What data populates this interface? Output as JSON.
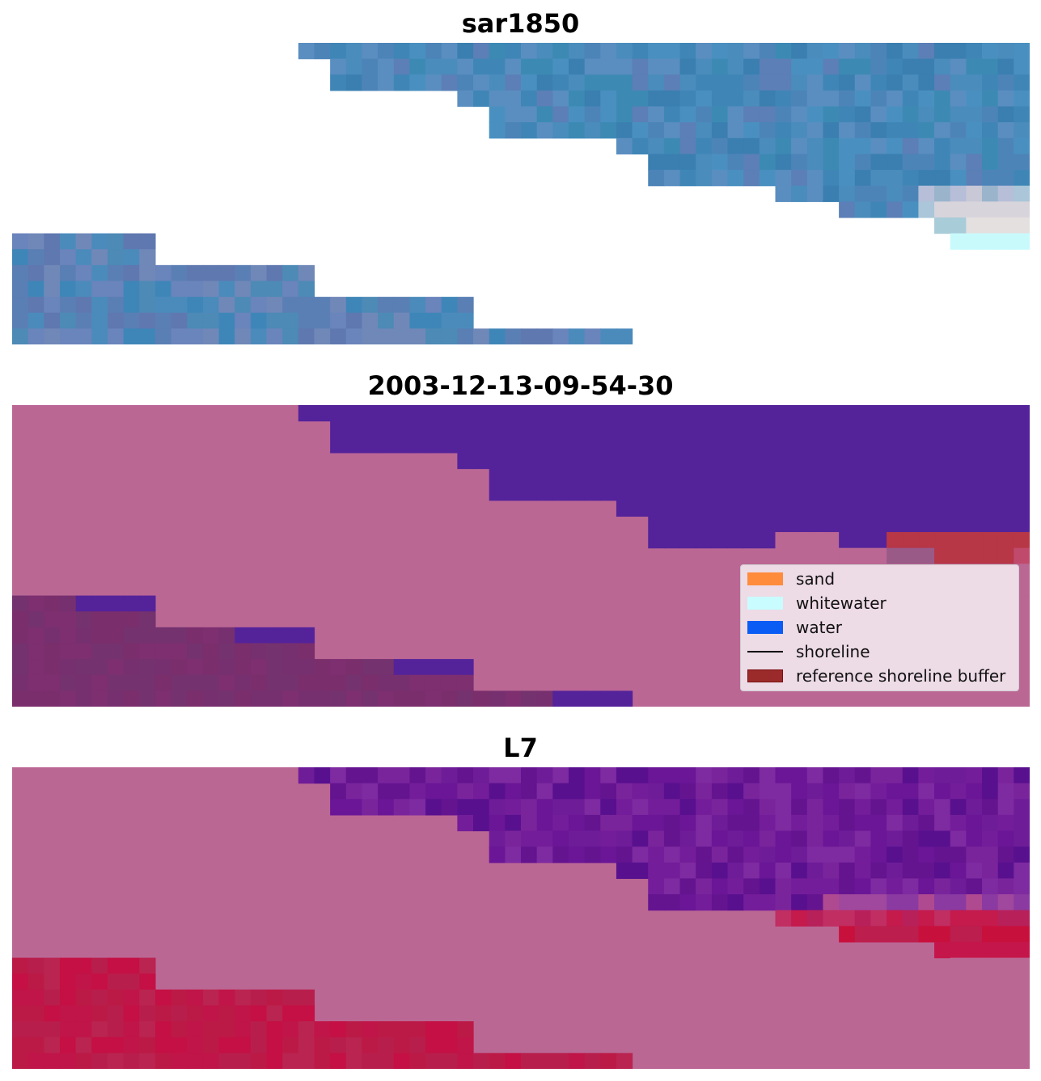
{
  "panels": [
    {
      "title": "sar1850"
    },
    {
      "title": "2003-12-13-09-54-30"
    },
    {
      "title": "L7"
    }
  ],
  "legend": {
    "items": [
      {
        "label": "sand",
        "kind": "patch",
        "color": "#ff8c3c",
        "edge": "#ff8c3c"
      },
      {
        "label": "whitewater",
        "kind": "patch",
        "color": "#c8fcff",
        "edge": "#c8fcff"
      },
      {
        "label": "water",
        "kind": "patch",
        "color": "#0a5cf5",
        "edge": "#0a5cf5"
      },
      {
        "label": "shoreline",
        "kind": "line",
        "color": "#000000"
      },
      {
        "label": "reference shoreline buffer",
        "kind": "patch",
        "color": "#9b2b2b",
        "edge": "#7a1010"
      }
    ]
  },
  "colors": {
    "background_mask": "#bb6794",
    "water_class": "#54239a",
    "buffer_class": "#b73747",
    "land_dark": "#7a2f6e",
    "sar_blue": "#4289b8",
    "index_purple": "#6e1c98",
    "index_red": "#c01b47"
  }
}
